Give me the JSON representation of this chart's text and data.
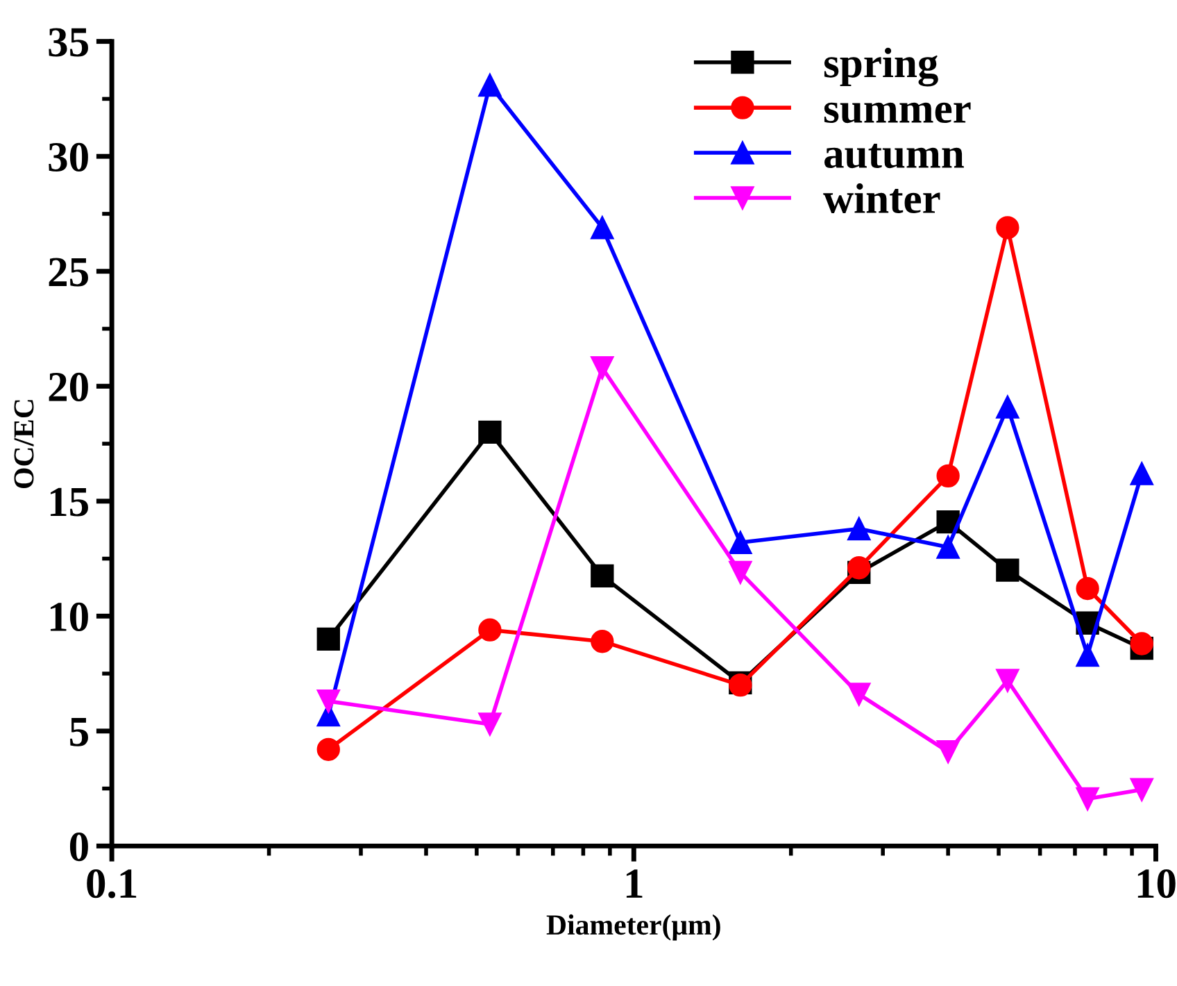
{
  "chart_data": {
    "type": "line",
    "xlabel": "Diameter(μm)",
    "ylabel": "OC/EC",
    "log": "x",
    "xlim": [
      0.1,
      10
    ],
    "xticks": [
      0.1,
      1,
      10
    ],
    "ylim": [
      0,
      35
    ],
    "yticks": [
      0,
      5,
      10,
      15,
      20,
      25,
      30,
      35
    ],
    "x": [
      0.26,
      0.53,
      0.87,
      1.6,
      2.7,
      4.0,
      5.2,
      7.4,
      9.4
    ],
    "series": [
      {
        "name": "spring",
        "color": "#000000",
        "marker": "square",
        "values": [
          9.0,
          18.0,
          11.75,
          7.1,
          11.9,
          14.1,
          12.0,
          9.7,
          8.6
        ]
      },
      {
        "name": "summer",
        "color": "#ff0000",
        "marker": "circle",
        "values": [
          4.2,
          9.4,
          8.9,
          7.0,
          12.1,
          16.1,
          26.9,
          11.2,
          8.8
        ]
      },
      {
        "name": "autumn",
        "color": "#0000ff",
        "marker": "triangle",
        "values": [
          5.7,
          33.1,
          26.9,
          13.2,
          13.8,
          13.0,
          19.1,
          8.3,
          16.2
        ]
      },
      {
        "name": "winter",
        "color": "#ff00ff",
        "marker": "triangle-down",
        "values": [
          6.3,
          5.3,
          20.8,
          11.9,
          6.6,
          4.1,
          7.2,
          2.05,
          2.45
        ]
      }
    ],
    "legend": "top right",
    "grid": false,
    "line_style": "solid"
  }
}
